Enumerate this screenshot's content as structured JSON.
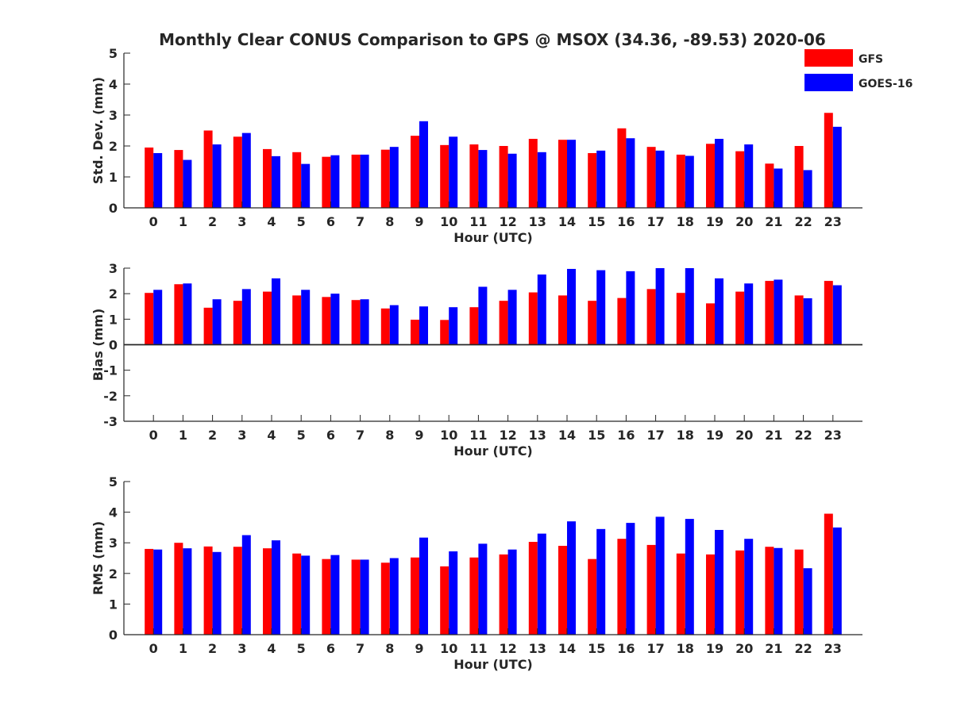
{
  "title": "Monthly Clear CONUS Comparison to GPS @ MSOX (34.36, -89.53) 2020-06",
  "legend": [
    {
      "name": "GFS",
      "color": "#ff0000"
    },
    {
      "name": "GOES-16",
      "color": "#0000ff"
    }
  ],
  "chart_data": [
    {
      "type": "bar",
      "xlabel": "Hour (UTC)",
      "ylabel": "Std. Dev. (mm)",
      "ylim": [
        0,
        5
      ],
      "yticks": [
        0,
        1,
        2,
        3,
        4,
        5
      ],
      "categories": [
        "0",
        "1",
        "2",
        "3",
        "4",
        "5",
        "6",
        "7",
        "8",
        "9",
        "10",
        "11",
        "12",
        "13",
        "14",
        "15",
        "16",
        "17",
        "18",
        "19",
        "20",
        "21",
        "22",
        "23"
      ],
      "series": [
        {
          "name": "GFS",
          "color": "#ff0000",
          "values": [
            1.95,
            1.87,
            2.5,
            2.3,
            1.9,
            1.8,
            1.65,
            1.72,
            1.88,
            2.33,
            2.03,
            2.05,
            2.0,
            2.23,
            2.2,
            1.77,
            2.57,
            1.97,
            1.72,
            2.07,
            1.83,
            1.43,
            2.0,
            3.07
          ]
        },
        {
          "name": "GOES-16",
          "color": "#0000ff",
          "values": [
            1.77,
            1.55,
            2.05,
            2.42,
            1.67,
            1.42,
            1.7,
            1.72,
            1.97,
            2.8,
            2.3,
            1.87,
            1.75,
            1.8,
            2.2,
            1.85,
            2.25,
            1.85,
            1.68,
            2.23,
            2.05,
            1.27,
            1.22,
            2.62
          ]
        }
      ]
    },
    {
      "type": "bar",
      "xlabel": "Hour (UTC)",
      "ylabel": "Bias (mm)",
      "ylim": [
        -3,
        3
      ],
      "yticks": [
        -3,
        -2,
        -1,
        0,
        1,
        2,
        3
      ],
      "categories": [
        "0",
        "1",
        "2",
        "3",
        "4",
        "5",
        "6",
        "7",
        "8",
        "9",
        "10",
        "11",
        "12",
        "13",
        "14",
        "15",
        "16",
        "17",
        "18",
        "19",
        "20",
        "21",
        "22",
        "23"
      ],
      "series": [
        {
          "name": "GFS",
          "color": "#ff0000",
          "values": [
            2.03,
            2.37,
            1.45,
            1.72,
            2.08,
            1.93,
            1.87,
            1.75,
            1.42,
            0.98,
            0.97,
            1.47,
            1.72,
            2.05,
            1.93,
            1.72,
            1.83,
            2.18,
            2.03,
            1.62,
            2.08,
            2.5,
            1.93,
            2.5
          ]
        },
        {
          "name": "GOES-16",
          "color": "#0000ff",
          "values": [
            2.15,
            2.4,
            1.78,
            2.18,
            2.6,
            2.15,
            2.0,
            1.78,
            1.55,
            1.5,
            1.47,
            2.27,
            2.15,
            2.75,
            2.97,
            2.92,
            2.88,
            3.0,
            3.0,
            2.6,
            2.4,
            2.55,
            1.82,
            2.33
          ]
        }
      ]
    },
    {
      "type": "bar",
      "xlabel": "Hour (UTC)",
      "ylabel": "RMS (mm)",
      "ylim": [
        0,
        5
      ],
      "yticks": [
        0,
        1,
        2,
        3,
        4,
        5
      ],
      "categories": [
        "0",
        "1",
        "2",
        "3",
        "4",
        "5",
        "6",
        "7",
        "8",
        "9",
        "10",
        "11",
        "12",
        "13",
        "14",
        "15",
        "16",
        "17",
        "18",
        "19",
        "20",
        "21",
        "22",
        "23"
      ],
      "series": [
        {
          "name": "GFS",
          "color": "#ff0000",
          "values": [
            2.8,
            3.0,
            2.88,
            2.87,
            2.82,
            2.65,
            2.47,
            2.45,
            2.35,
            2.52,
            2.23,
            2.52,
            2.62,
            3.03,
            2.9,
            2.47,
            3.13,
            2.93,
            2.65,
            2.62,
            2.75,
            2.87,
            2.78,
            3.95
          ]
        },
        {
          "name": "GOES-16",
          "color": "#0000ff",
          "values": [
            2.78,
            2.82,
            2.7,
            3.25,
            3.08,
            2.58,
            2.6,
            2.45,
            2.5,
            3.17,
            2.72,
            2.97,
            2.78,
            3.3,
            3.7,
            3.45,
            3.65,
            3.85,
            3.78,
            3.42,
            3.13,
            2.83,
            2.17,
            3.5
          ]
        }
      ]
    }
  ]
}
